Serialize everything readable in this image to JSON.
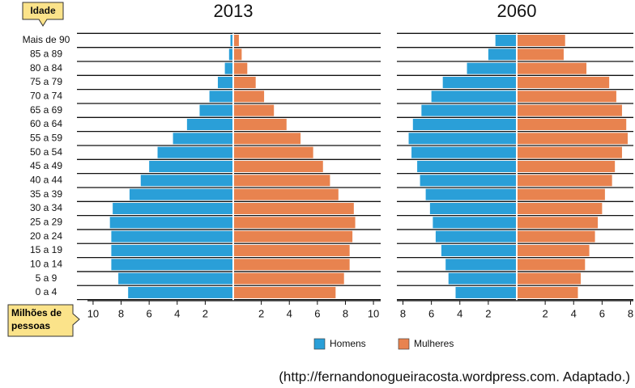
{
  "y_label": "Idade",
  "x_label": "Milhões de pessoas",
  "source": "(http://fernandonogueiracosta.wordpress.com. Adaptado.)",
  "chart_data": [
    {
      "type": "pyramid",
      "title": "2013",
      "categories": [
        "Mais de 90",
        "85 a 89",
        "80 a 84",
        "75 a 79",
        "70 a 74",
        "65 a 69",
        "60 a 64",
        "55 a 59",
        "50 a 54",
        "45 a 49",
        "40 a 44",
        "35 a 39",
        "30 a 34",
        "25 a 29",
        "20 a 24",
        "15 a 19",
        "10 a 14",
        "5 a 9",
        "0 a 4"
      ],
      "xlim": [
        0,
        10.4
      ],
      "xticks": [
        2,
        4,
        6,
        8,
        10
      ],
      "series": [
        {
          "name": "Homens",
          "color": "#2a9fd8",
          "values": [
            0.2,
            0.3,
            0.6,
            1.1,
            1.7,
            2.4,
            3.3,
            4.3,
            5.4,
            6.0,
            6.6,
            7.4,
            8.6,
            8.8,
            8.7,
            8.7,
            8.7,
            8.2,
            7.5
          ]
        },
        {
          "name": "Mulheres",
          "color": "#e8834f",
          "values": [
            0.4,
            0.6,
            1.0,
            1.6,
            2.2,
            2.9,
            3.8,
            4.8,
            5.7,
            6.4,
            6.9,
            7.5,
            8.6,
            8.7,
            8.5,
            8.3,
            8.3,
            7.9,
            7.3
          ]
        }
      ]
    },
    {
      "type": "pyramid",
      "title": "2060",
      "categories": [
        "Mais de 90",
        "85 a 89",
        "80 a 84",
        "75 a 79",
        "70 a 74",
        "65 a 69",
        "60 a 64",
        "55 a 59",
        "50 a 54",
        "45 a 49",
        "40 a 44",
        "35 a 39",
        "30 a 34",
        "25 a 29",
        "20 a 24",
        "15 a 19",
        "10 a 14",
        "5 a 9",
        "0 a 4"
      ],
      "xlim": [
        0,
        8.2
      ],
      "xticks": [
        2,
        4,
        6,
        8
      ],
      "series": [
        {
          "name": "Homens",
          "color": "#2a9fd8",
          "values": [
            1.5,
            2.0,
            3.5,
            5.2,
            6.0,
            6.7,
            7.3,
            7.6,
            7.4,
            7.0,
            6.8,
            6.4,
            6.1,
            5.9,
            5.7,
            5.3,
            5.0,
            4.8,
            4.3
          ]
        },
        {
          "name": "Mulheres",
          "color": "#e8834f",
          "values": [
            3.4,
            3.3,
            4.9,
            6.5,
            7.0,
            7.4,
            7.7,
            7.8,
            7.4,
            6.9,
            6.7,
            6.2,
            6.0,
            5.7,
            5.5,
            5.1,
            4.8,
            4.5,
            4.3
          ]
        }
      ]
    }
  ]
}
